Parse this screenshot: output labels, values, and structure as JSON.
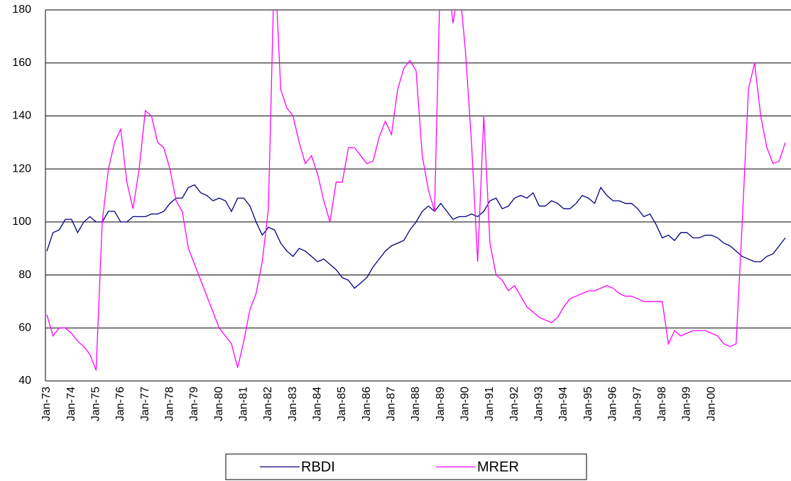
{
  "chart_data": {
    "type": "line",
    "categories": [
      "Jan-73",
      null,
      null,
      null,
      "Jan-74",
      null,
      null,
      null,
      "Jan-75",
      null,
      null,
      null,
      "Jan-76",
      null,
      null,
      null,
      "Jan-77",
      null,
      null,
      null,
      "Jan-78",
      null,
      null,
      null,
      "Jan-79",
      null,
      null,
      null,
      "Jan-80",
      null,
      null,
      null,
      "Jan-81",
      null,
      null,
      null,
      "Jan-82",
      null,
      null,
      null,
      "Jan-83",
      null,
      null,
      null,
      "Jan-84",
      null,
      null,
      null,
      "Jan-85",
      null,
      null,
      null,
      "Jan-86",
      null,
      null,
      null,
      "Jan-87",
      null,
      null,
      null,
      "Jan-88",
      null,
      null,
      null,
      "Jan-89",
      null,
      null,
      null,
      "Jan-90",
      null,
      null,
      null,
      "Jan-91",
      null,
      null,
      null,
      "Jan-92",
      null,
      null,
      null,
      "Jan-93",
      null,
      null,
      null,
      "Jan-94",
      null,
      null,
      null,
      "Jan-95",
      null,
      null,
      null,
      "Jan-96",
      null,
      null,
      null,
      "Jan-97",
      null,
      null,
      null,
      "Jan-98",
      null,
      null,
      null,
      "Jan-99",
      null,
      null,
      null,
      "Jan-00",
      null,
      null,
      null,
      null,
      null,
      null,
      null,
      null,
      null,
      null,
      null,
      null
    ],
    "series": [
      {
        "name": "RBDI",
        "color": "#000080",
        "values": [
          89,
          96,
          97,
          101,
          101,
          96,
          100,
          102,
          100,
          100,
          104,
          104,
          100,
          100,
          102,
          102,
          102,
          103,
          103,
          104,
          107,
          109,
          109,
          113,
          114,
          111,
          110,
          108,
          109,
          108,
          104,
          109,
          109,
          106,
          100,
          95,
          98,
          97,
          92,
          89,
          87,
          90,
          89,
          87,
          85,
          86,
          84,
          82,
          79,
          78,
          75,
          77,
          79,
          83,
          86,
          89,
          91,
          92,
          93,
          97,
          100,
          104,
          106,
          104,
          107,
          104,
          101,
          102,
          102,
          103,
          102,
          104,
          108,
          109,
          105,
          106,
          109,
          110,
          109,
          111,
          106,
          106,
          108,
          107,
          105,
          105,
          107,
          110,
          109,
          107,
          113,
          110,
          108,
          108,
          107,
          107,
          105,
          102,
          103,
          99,
          94,
          95,
          93,
          96,
          96,
          94,
          94,
          95,
          95,
          94,
          92,
          91,
          89,
          87,
          86,
          85,
          85,
          87,
          88,
          91,
          94
        ]
      },
      {
        "name": "MRER",
        "color": "#ff00ff",
        "values": [
          65,
          57,
          60,
          60,
          58,
          55,
          53,
          50,
          44,
          100,
          120,
          130,
          135,
          115,
          105,
          120,
          142,
          140,
          130,
          128,
          120,
          108,
          104,
          90,
          84,
          78,
          72,
          66,
          60,
          57,
          54,
          45,
          55,
          67,
          73,
          85,
          105,
          200,
          150,
          143,
          140,
          130,
          122,
          125,
          118,
          108,
          100,
          115,
          115,
          128,
          128,
          125,
          122,
          123,
          132,
          138,
          133,
          150,
          158,
          161,
          157,
          125,
          112,
          104,
          200,
          195,
          175,
          190,
          165,
          130,
          85,
          140,
          92,
          80,
          78,
          74,
          76,
          72,
          68,
          66,
          64,
          63,
          62,
          64,
          68,
          71,
          72,
          73,
          74,
          74,
          75,
          76,
          75,
          73,
          72,
          72,
          71,
          70,
          70,
          70,
          70,
          54,
          59,
          57,
          58,
          59,
          59,
          59,
          58,
          57,
          54,
          53,
          54,
          100,
          150,
          160,
          140,
          128,
          122,
          123,
          130
        ]
      }
    ],
    "ylim": [
      40,
      180
    ],
    "yticks": [
      40,
      60,
      80,
      100,
      120,
      140,
      160,
      180
    ],
    "grid": true,
    "legend": "bottom"
  }
}
